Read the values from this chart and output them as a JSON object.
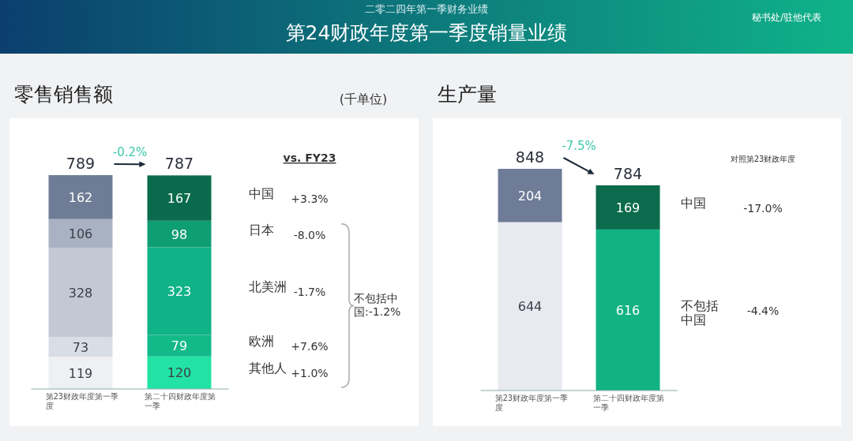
{
  "chart_data": [
    {
      "type": "other",
      "title": "第24财政年度第一季度销量业绩",
      "subtitle": "二零二四年第一季财务业绩",
      "annotations": [
        "秘书处/驻他代表"
      ]
    },
    {
      "type": "bar",
      "title": "零售销售额",
      "ylabel": "(千单位)",
      "stacked": true,
      "data_labels": true,
      "categories": [
        "第23财政年度第一季度",
        "第二十四财政年度第一季"
      ],
      "series": [
        {
          "name": "其他人",
          "colors": [
            "#eef0f3",
            "#22e3a4"
          ],
          "values": [
            119,
            120
          ]
        },
        {
          "name": "欧洲",
          "colors": [
            "#d9dde5",
            "#14b98a"
          ],
          "values": [
            73,
            79
          ]
        },
        {
          "name": "北美洲",
          "colors": [
            "#c3c9d4",
            "#10b287"
          ],
          "values": [
            328,
            323
          ]
        },
        {
          "name": "日本",
          "colors": [
            "#a9b2c2",
            "#0f9e72"
          ],
          "values": [
            106,
            98
          ]
        },
        {
          "name": "中国",
          "colors": [
            "#6f7c95",
            "#0a6b4c"
          ],
          "values": [
            162,
            167
          ]
        }
      ],
      "totals": [
        "789",
        "787"
      ],
      "annotations": [
        "-0.2%",
        "vs. FY23",
        "+1.0%",
        "+7.6%",
        "-1.7%",
        "-8.0%",
        "+3.3%",
        "不包括中国:-1.2%"
      ]
    },
    {
      "type": "bar",
      "title": "生产量",
      "stacked": true,
      "data_labels": true,
      "categories": [
        "第23财政年度第一季度",
        "第二十四财政年度第一季"
      ],
      "series": [
        {
          "name": "不包括中国",
          "colors": [
            "#e8eaf0",
            "#11b383"
          ],
          "values": [
            644,
            616
          ]
        },
        {
          "name": "中国",
          "colors": [
            "#6e7c98",
            "#0b6b4c"
          ],
          "values": [
            204,
            169
          ]
        }
      ],
      "totals": [
        "848",
        "784"
      ],
      "annotations": [
        "-7.5%",
        "对照第23财政年度",
        "-4.4%",
        "-17.0%"
      ]
    }
  ]
}
